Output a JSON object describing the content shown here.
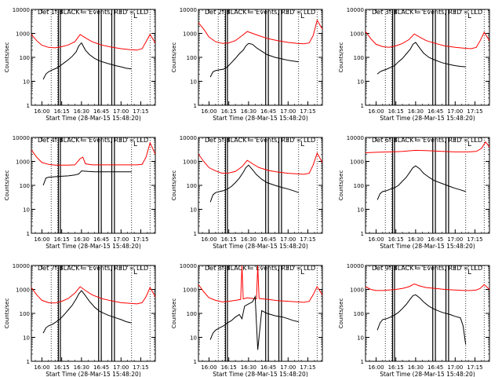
{
  "chart_data": {
    "type": "line",
    "y_scale": "log",
    "ylim": [
      1,
      10000
    ],
    "y_ticks": [
      "1",
      "10",
      "100",
      "1000",
      "10000"
    ],
    "x_range": [
      "15:52",
      "17:26"
    ],
    "x_ticks": [
      "16:00",
      "16:15",
      "16:30",
      "16:45",
      "17:00",
      "17:15"
    ],
    "ylabel": "Counts/sec",
    "xlabel": "Start Time (28-Mar-15 15:48:20)",
    "corner_label": "L",
    "colors": {
      "events": "#000000",
      "lld": "#ff0000",
      "frame": "#000000",
      "dotted": "#000000"
    },
    "dotted_lines": [
      "16:07",
      "16:12",
      "17:08",
      "17:22"
    ],
    "solid_lines": [
      "16:12.5",
      "16:14",
      "16:43",
      "16:45",
      "16:53",
      "16:55"
    ],
    "panels": [
      {
        "title": "Det 1f BLACK = Events, RED = LLD",
        "lld": {
          "x": [
            "15:52",
            "15:56",
            "16:00",
            "16:05",
            "16:10",
            "16:15",
            "16:20",
            "16:25",
            "16:29",
            "16:33",
            "16:38",
            "16:45",
            "16:52",
            "17:00",
            "17:07",
            "17:12",
            "17:16",
            "17:19",
            "17:22",
            "17:26"
          ],
          "y": [
            900,
            500,
            320,
            260,
            250,
            280,
            330,
            450,
            900,
            650,
            450,
            330,
            270,
            230,
            210,
            200,
            230,
            450,
            900,
            400
          ]
        },
        "events": {
          "x": [
            "16:01",
            "16:03",
            "16:05",
            "16:08",
            "16:11",
            "16:14",
            "16:17",
            "16:20",
            "16:23",
            "16:26",
            "16:28",
            "16:30",
            "16:33",
            "16:36",
            "16:40",
            "16:44",
            "16:50",
            "16:56",
            "17:00",
            "17:04",
            "17:08"
          ],
          "y": [
            12,
            20,
            25,
            30,
            35,
            45,
            60,
            80,
            110,
            170,
            300,
            400,
            200,
            130,
            90,
            70,
            55,
            45,
            40,
            35,
            33
          ]
        }
      },
      {
        "title": "Det 2f BLACK = Events, RED = LLD",
        "lld": {
          "x": [
            "15:52",
            "15:56",
            "16:00",
            "16:05",
            "16:10",
            "16:15",
            "16:20",
            "16:25",
            "16:29",
            "16:33",
            "16:38",
            "16:45",
            "16:52",
            "17:00",
            "17:07",
            "17:12",
            "17:16",
            "17:19",
            "17:22",
            "17:26"
          ],
          "y": [
            2800,
            1500,
            700,
            450,
            380,
            400,
            500,
            800,
            1200,
            1000,
            800,
            600,
            500,
            420,
            380,
            370,
            400,
            800,
            3500,
            1500
          ]
        },
        "events": {
          "x": [
            "16:01",
            "16:03",
            "16:05",
            "16:08",
            "16:11",
            "16:14",
            "16:17",
            "16:20",
            "16:23",
            "16:26",
            "16:28",
            "16:30",
            "16:33",
            "16:36",
            "16:40",
            "16:44",
            "16:50",
            "16:56",
            "17:00",
            "17:04",
            "17:08"
          ],
          "y": [
            15,
            25,
            28,
            30,
            32,
            40,
            60,
            90,
            140,
            200,
            300,
            380,
            350,
            250,
            180,
            130,
            100,
            85,
            75,
            70,
            65
          ]
        }
      },
      {
        "title": "Det 3f BLACK = Events, RED = LLD",
        "lld": {
          "x": [
            "15:52",
            "15:56",
            "16:00",
            "16:05",
            "16:10",
            "16:15",
            "16:20",
            "16:25",
            "16:29",
            "16:33",
            "16:38",
            "16:45",
            "16:52",
            "17:00",
            "17:07",
            "17:12",
            "17:16",
            "17:19",
            "17:22",
            "17:26"
          ],
          "y": [
            1200,
            600,
            350,
            280,
            260,
            300,
            380,
            550,
            950,
            700,
            500,
            380,
            300,
            260,
            240,
            230,
            260,
            500,
            1100,
            500
          ]
        },
        "events": {
          "x": [
            "16:01",
            "16:03",
            "16:05",
            "16:08",
            "16:11",
            "16:14",
            "16:17",
            "16:20",
            "16:23",
            "16:26",
            "16:28",
            "16:30",
            "16:33",
            "16:36",
            "16:40",
            "16:44",
            "16:50",
            "16:56",
            "17:00",
            "17:04",
            "17:08"
          ],
          "y": [
            20,
            25,
            28,
            32,
            38,
            45,
            65,
            90,
            140,
            220,
            350,
            420,
            250,
            150,
            100,
            80,
            60,
            50,
            45,
            42,
            40
          ]
        }
      },
      {
        "title": "Det 4f BLACK = Events, RED = LLD",
        "lld": {
          "x": [
            "15:52",
            "15:56",
            "16:00",
            "16:05",
            "16:10",
            "16:15",
            "16:20",
            "16:25",
            "16:29",
            "16:31",
            "16:33",
            "16:38",
            "16:45",
            "16:52",
            "17:00",
            "17:07",
            "17:12",
            "17:16",
            "17:19",
            "17:22",
            "17:26"
          ],
          "y": [
            3000,
            1500,
            900,
            750,
            700,
            700,
            700,
            720,
            1300,
            1500,
            800,
            720,
            720,
            720,
            720,
            720,
            720,
            750,
            1500,
            6000,
            2000
          ]
        },
        "events": {
          "x": [
            "16:01",
            "16:03",
            "16:05",
            "16:10",
            "16:15",
            "16:20",
            "16:25",
            "16:28",
            "16:30",
            "16:35",
            "16:40",
            "16:50",
            "17:00",
            "17:08"
          ],
          "y": [
            100,
            200,
            220,
            230,
            240,
            250,
            270,
            300,
            400,
            380,
            370,
            370,
            370,
            370
          ]
        }
      },
      {
        "title": "Det 5f BLACK = Events, RED = LLD",
        "lld": {
          "x": [
            "15:52",
            "15:56",
            "16:00",
            "16:05",
            "16:10",
            "16:15",
            "16:20",
            "16:25",
            "16:29",
            "16:33",
            "16:38",
            "16:45",
            "16:52",
            "17:00",
            "17:07",
            "17:12",
            "17:16",
            "17:19",
            "17:22",
            "17:26"
          ],
          "y": [
            2000,
            1000,
            550,
            400,
            320,
            330,
            380,
            600,
            1100,
            800,
            550,
            420,
            360,
            320,
            300,
            290,
            320,
            700,
            2200,
            900
          ]
        },
        "events": {
          "x": [
            "16:01",
            "16:03",
            "16:05",
            "16:08",
            "16:11",
            "16:14",
            "16:17",
            "16:20",
            "16:23",
            "16:26",
            "16:28",
            "16:30",
            "16:33",
            "16:36",
            "16:40",
            "16:44",
            "16:50",
            "16:56",
            "17:00",
            "17:04",
            "17:08"
          ],
          "y": [
            20,
            40,
            50,
            55,
            60,
            70,
            90,
            130,
            200,
            350,
            550,
            700,
            450,
            280,
            180,
            130,
            100,
            80,
            70,
            60,
            50
          ]
        }
      },
      {
        "title": "Det 6f BLACK = Events, RED = LLD",
        "lld": {
          "x": [
            "15:52",
            "16:00",
            "16:10",
            "16:20",
            "16:30",
            "16:40",
            "16:50",
            "17:00",
            "17:10",
            "17:16",
            "17:20",
            "17:23",
            "17:26"
          ],
          "y": [
            2300,
            2400,
            2500,
            2600,
            2900,
            2800,
            2600,
            2500,
            2500,
            2600,
            3500,
            6500,
            4000
          ]
        },
        "events": {
          "x": [
            "16:01",
            "16:03",
            "16:05",
            "16:08",
            "16:11",
            "16:14",
            "16:17",
            "16:20",
            "16:23",
            "16:26",
            "16:28",
            "16:30",
            "16:33",
            "16:36",
            "16:40",
            "16:44",
            "16:50",
            "16:56",
            "17:00",
            "17:04",
            "17:08"
          ],
          "y": [
            25,
            45,
            55,
            60,
            70,
            80,
            100,
            150,
            220,
            380,
            550,
            650,
            500,
            320,
            220,
            160,
            120,
            90,
            75,
            65,
            55
          ]
        }
      },
      {
        "title": "Det 7f BLACK = Events, RED = LLD",
        "lld": {
          "x": [
            "15:52",
            "15:56",
            "16:00",
            "16:05",
            "16:10",
            "16:15",
            "16:20",
            "16:25",
            "16:29",
            "16:33",
            "16:38",
            "16:45",
            "16:52",
            "17:00",
            "17:07",
            "17:12",
            "17:16",
            "17:19",
            "17:22",
            "17:26"
          ],
          "y": [
            1200,
            600,
            350,
            280,
            270,
            320,
            420,
            700,
            1300,
            900,
            600,
            420,
            340,
            280,
            260,
            250,
            280,
            500,
            1200,
            500
          ]
        },
        "events": {
          "x": [
            "16:01",
            "16:03",
            "16:05",
            "16:08",
            "16:11",
            "16:14",
            "16:17",
            "16:20",
            "16:23",
            "16:26",
            "16:28",
            "16:30",
            "16:33",
            "16:36",
            "16:40",
            "16:44",
            "16:50",
            "16:56",
            "17:00",
            "17:04",
            "17:08"
          ],
          "y": [
            15,
            25,
            30,
            35,
            45,
            60,
            90,
            140,
            220,
            400,
            650,
            900,
            550,
            320,
            180,
            120,
            85,
            65,
            55,
            45,
            40
          ]
        }
      },
      {
        "title": "Det 8f BLACK = Events, RED = LLD",
        "lld": {
          "x": [
            "15:52",
            "15:56",
            "16:00",
            "16:05",
            "16:10",
            "16:15",
            "16:20",
            "16:24",
            "16:25",
            "16:26",
            "16:29",
            "16:33",
            "16:36",
            "16:37",
            "16:38",
            "16:45",
            "16:52",
            "17:00",
            "17:07",
            "17:12",
            "17:16",
            "17:19",
            "17:22",
            "17:26"
          ],
          "y": [
            1600,
            800,
            450,
            350,
            300,
            320,
            350,
            380,
            10000,
            400,
            450,
            420,
            400,
            10000,
            420,
            380,
            340,
            320,
            300,
            290,
            320,
            600,
            1300,
            600
          ]
        },
        "events": {
          "x": [
            "16:01",
            "16:03",
            "16:05",
            "16:08",
            "16:11",
            "16:14",
            "16:17",
            "16:20",
            "16:23",
            "16:25",
            "16:27",
            "16:30",
            "16:33",
            "16:35",
            "16:37",
            "16:40",
            "16:44",
            "16:50",
            "16:56",
            "17:00",
            "17:04",
            "17:08"
          ],
          "y": [
            8,
            15,
            20,
            25,
            30,
            40,
            50,
            70,
            90,
            60,
            200,
            250,
            300,
            500,
            3,
            130,
            100,
            80,
            70,
            60,
            50,
            45
          ]
        }
      },
      {
        "title": "Det 9f BLACK = Events, RED = LLD",
        "lld": {
          "x": [
            "15:52",
            "15:56",
            "16:00",
            "16:05",
            "16:10",
            "16:15",
            "16:20",
            "16:25",
            "16:29",
            "16:33",
            "16:38",
            "16:45",
            "16:52",
            "17:00",
            "17:07",
            "17:12",
            "17:16",
            "17:19",
            "17:22",
            "17:26"
          ],
          "y": [
            1300,
            1000,
            900,
            900,
            950,
            1000,
            1100,
            1300,
            1700,
            1400,
            1200,
            1100,
            1000,
            950,
            900,
            900,
            950,
            1100,
            1600,
            1000
          ]
        },
        "events": {
          "x": [
            "16:01",
            "16:03",
            "16:05",
            "16:08",
            "16:11",
            "16:14",
            "16:17",
            "16:20",
            "16:23",
            "16:26",
            "16:28",
            "16:30",
            "16:33",
            "16:36",
            "16:40",
            "16:44",
            "16:50",
            "16:56",
            "17:00",
            "17:04",
            "17:06",
            "17:08"
          ],
          "y": [
            20,
            40,
            55,
            60,
            70,
            85,
            110,
            160,
            240,
            400,
            550,
            600,
            450,
            300,
            200,
            150,
            110,
            90,
            75,
            65,
            30,
            5
          ]
        }
      }
    ]
  }
}
